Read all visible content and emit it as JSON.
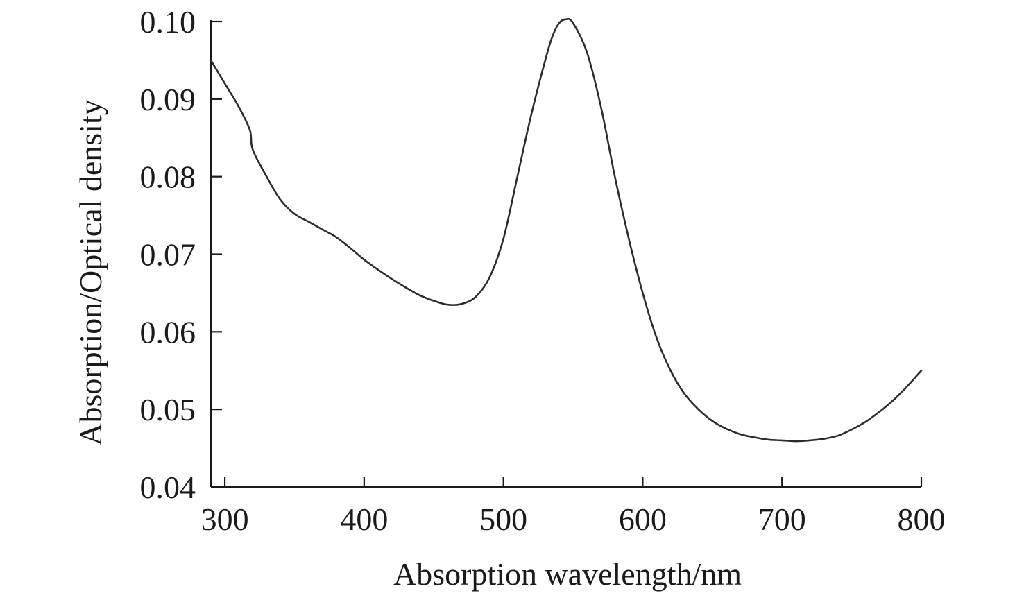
{
  "chart_data": {
    "type": "line",
    "title": "",
    "xlabel": "Absorption wavelength/nm",
    "ylabel": "Absorption/Optical density",
    "xlim": [
      290,
      800
    ],
    "ylim": [
      0.04,
      0.1
    ],
    "x_ticks": [
      300,
      400,
      500,
      600,
      700,
      800
    ],
    "x_tick_labels": [
      "300",
      "400",
      "500",
      "600",
      "700",
      "800"
    ],
    "y_ticks": [
      0.04,
      0.05,
      0.06,
      0.07,
      0.08,
      0.09,
      0.1
    ],
    "y_tick_labels": [
      "0.04",
      "0.05",
      "0.06",
      "0.07",
      "0.08",
      "0.09",
      "0.10"
    ],
    "grid": false,
    "legend": "none",
    "line_color": "#2b2b33",
    "series": [
      {
        "x": [
          290,
          300,
          310,
          318,
          320,
          330,
          340,
          350,
          360,
          370,
          380,
          390,
          400,
          410,
          420,
          430,
          440,
          450,
          460,
          470,
          480,
          490,
          500,
          510,
          520,
          530,
          535,
          540,
          545,
          550,
          560,
          570,
          580,
          590,
          600,
          610,
          620,
          630,
          640,
          650,
          660,
          670,
          680,
          690,
          700,
          710,
          720,
          730,
          740,
          750,
          760,
          770,
          780,
          790,
          800
        ],
        "y": [
          0.095,
          0.092,
          0.089,
          0.086,
          0.0835,
          0.08,
          0.077,
          0.0752,
          0.0742,
          0.0732,
          0.0722,
          0.0708,
          0.0693,
          0.068,
          0.0668,
          0.0657,
          0.0647,
          0.064,
          0.0635,
          0.0636,
          0.0645,
          0.067,
          0.072,
          0.08,
          0.088,
          0.095,
          0.098,
          0.0998,
          0.1003,
          0.0998,
          0.096,
          0.089,
          0.08,
          0.072,
          0.065,
          0.0592,
          0.055,
          0.052,
          0.05,
          0.0485,
          0.0475,
          0.0468,
          0.0464,
          0.0461,
          0.046,
          0.0459,
          0.046,
          0.0462,
          0.0466,
          0.0474,
          0.0484,
          0.0497,
          0.0512,
          0.053,
          0.055
        ]
      }
    ]
  }
}
